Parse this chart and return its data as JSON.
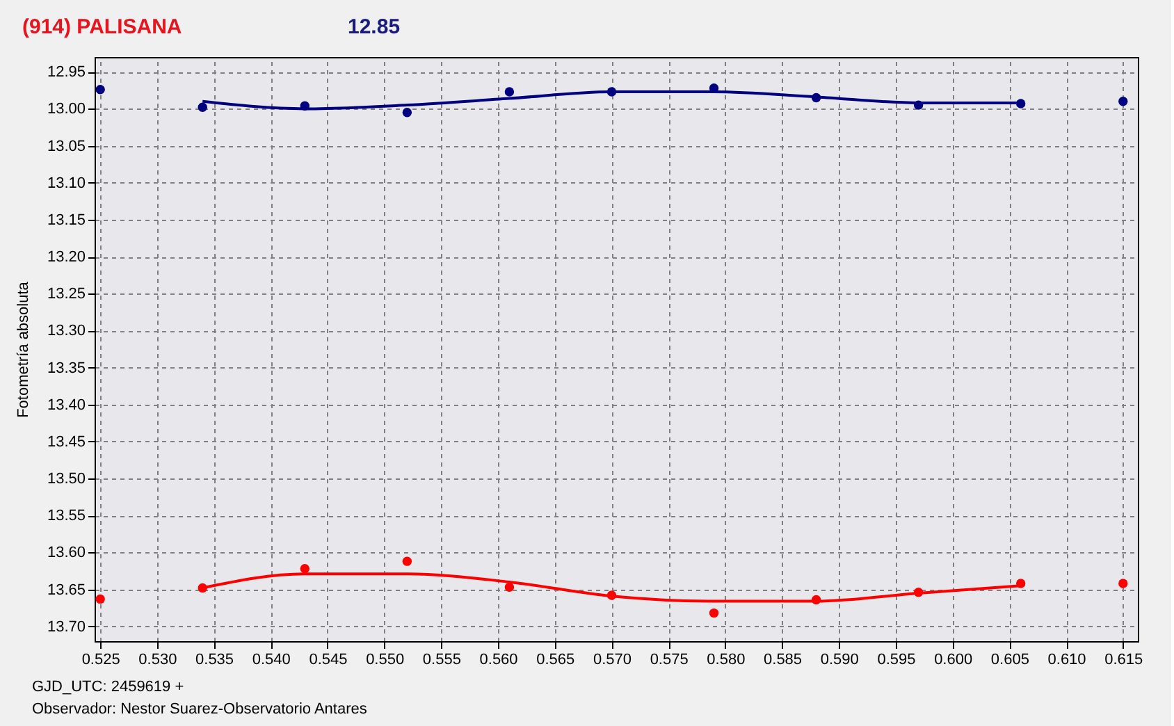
{
  "chart_data": {
    "type": "scatter",
    "title": "(914) PALISANA",
    "subtitle": "12.85",
    "ylabel": "Fotometría absoluta",
    "annotations": [
      "GJD_UTC: 2459619 +",
      "Observador: Nestor Suarez-Observatorio Antares"
    ],
    "xlim": [
      0.5245,
      0.6163
    ],
    "ylim": [
      13.72,
      12.93
    ],
    "xticks": [
      0.525,
      {
        "value": 0.53,
        "label": "0.530"
      },
      0.535,
      {
        "value": 0.54,
        "label": "0.540"
      },
      0.545,
      {
        "value": 0.55,
        "label": "0.550"
      },
      0.555,
      {
        "value": 0.56,
        "label": "0.560"
      },
      0.565,
      {
        "value": 0.57,
        "label": "0.570"
      },
      0.575,
      {
        "value": 0.58,
        "label": "0.580"
      },
      0.585,
      {
        "value": 0.59,
        "label": "0.590"
      },
      0.595,
      {
        "value": 0.6,
        "label": "0.600"
      },
      0.605,
      {
        "value": 0.61,
        "label": "0.610"
      },
      0.615
    ],
    "yticks": [
      12.95,
      {
        "value": 13.0,
        "label": "13.00"
      },
      13.05,
      {
        "value": 13.1,
        "label": "13.10"
      },
      13.15,
      {
        "value": 13.2,
        "label": "13.20"
      },
      13.25,
      {
        "value": 13.3,
        "label": "13.30"
      },
      13.35,
      {
        "value": 13.4,
        "label": "13.40"
      },
      13.45,
      {
        "value": 13.5,
        "label": "13.50"
      },
      13.55,
      {
        "value": 13.6,
        "label": "13.60"
      },
      13.65,
      {
        "value": 13.7,
        "label": "13.70"
      }
    ],
    "grid": true,
    "series": [
      {
        "marker": "circle",
        "color": "#000080",
        "x": [
          0.525,
          0.534,
          0.543,
          0.552,
          0.561,
          0.57,
          0.579,
          0.588,
          0.597,
          0.606,
          0.615
        ],
        "values": [
          12.974,
          12.998,
          12.996,
          13.005,
          12.977,
          12.977,
          12.972,
          12.985,
          12.995,
          12.993,
          12.99
        ]
      },
      {
        "type": "line",
        "color": "#000080",
        "x": [
          0.534,
          0.543,
          0.552,
          0.561,
          0.57,
          0.579,
          0.588,
          0.597,
          0.606
        ],
        "values": [
          12.99,
          13.0,
          12.995,
          12.986,
          12.977,
          12.977,
          12.984,
          12.992,
          12.992
        ]
      },
      {
        "marker": "circle",
        "color": "#ff0000",
        "x": [
          0.525,
          0.534,
          0.543,
          0.552,
          0.561,
          0.57,
          0.579,
          0.588,
          0.597,
          0.606,
          0.615
        ],
        "values": [
          13.663,
          13.648,
          13.622,
          13.612,
          13.647,
          13.658,
          13.682,
          13.664,
          13.654,
          13.642,
          13.642
        ]
      },
      {
        "type": "line",
        "color": "#ff0000",
        "x": [
          0.534,
          0.543,
          0.552,
          0.561,
          0.57,
          0.579,
          0.588,
          0.597,
          0.606
        ],
        "values": [
          13.648,
          13.629,
          13.629,
          13.64,
          13.659,
          13.666,
          13.666,
          13.655,
          13.645
        ]
      }
    ]
  }
}
